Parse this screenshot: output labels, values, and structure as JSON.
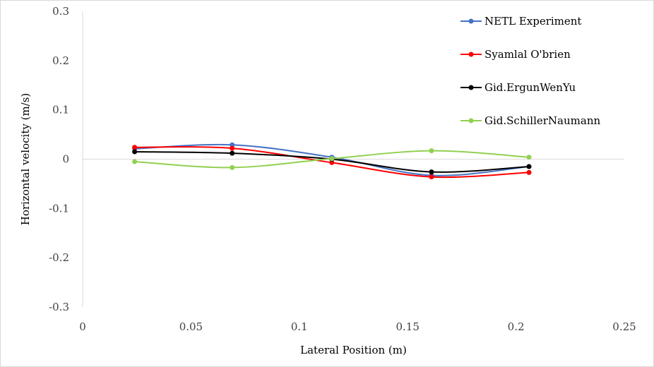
{
  "chart_data": {
    "type": "line",
    "smooth": true,
    "title": "",
    "xlabel": "Lateral Position (m)",
    "ylabel": "Horizontal velocity (m/s)",
    "xlim": [
      0,
      0.25
    ],
    "ylim": [
      -0.3,
      0.3
    ],
    "x_ticks": [
      0,
      0.05,
      0.1,
      0.15,
      0.2,
      0.25
    ],
    "y_ticks": [
      0.3,
      0.2,
      0.1,
      0,
      -0.1,
      -0.2,
      -0.3
    ],
    "x_tick_labels": [
      "0",
      "0.05",
      "0.1",
      "0.15",
      "0.2",
      "0.25"
    ],
    "y_tick_labels": [
      "0.3",
      "0.2",
      "0.1",
      "0",
      "-0.1",
      "-0.2",
      "-0.3"
    ],
    "grid": false,
    "legend_position": "top-right",
    "x": [
      0.024,
      0.069,
      0.115,
      0.161,
      0.206
    ],
    "series": [
      {
        "name": "NETL Experiment",
        "color": "#4472c4",
        "values": [
          0.021,
          0.029,
          0.004,
          -0.033,
          -0.015
        ]
      },
      {
        "name": "Syamlal O'brien",
        "color": "#ff0000",
        "values": [
          0.024,
          0.022,
          -0.007,
          -0.036,
          -0.027
        ]
      },
      {
        "name": "Gid.ErgunWenYu",
        "color": "#000000",
        "values": [
          0.015,
          0.012,
          0.0,
          -0.026,
          -0.015
        ]
      },
      {
        "name": "Gid.SchillerNaumann",
        "color": "#92d050",
        "values": [
          -0.005,
          -0.017,
          0.001,
          0.017,
          0.004
        ]
      }
    ]
  }
}
